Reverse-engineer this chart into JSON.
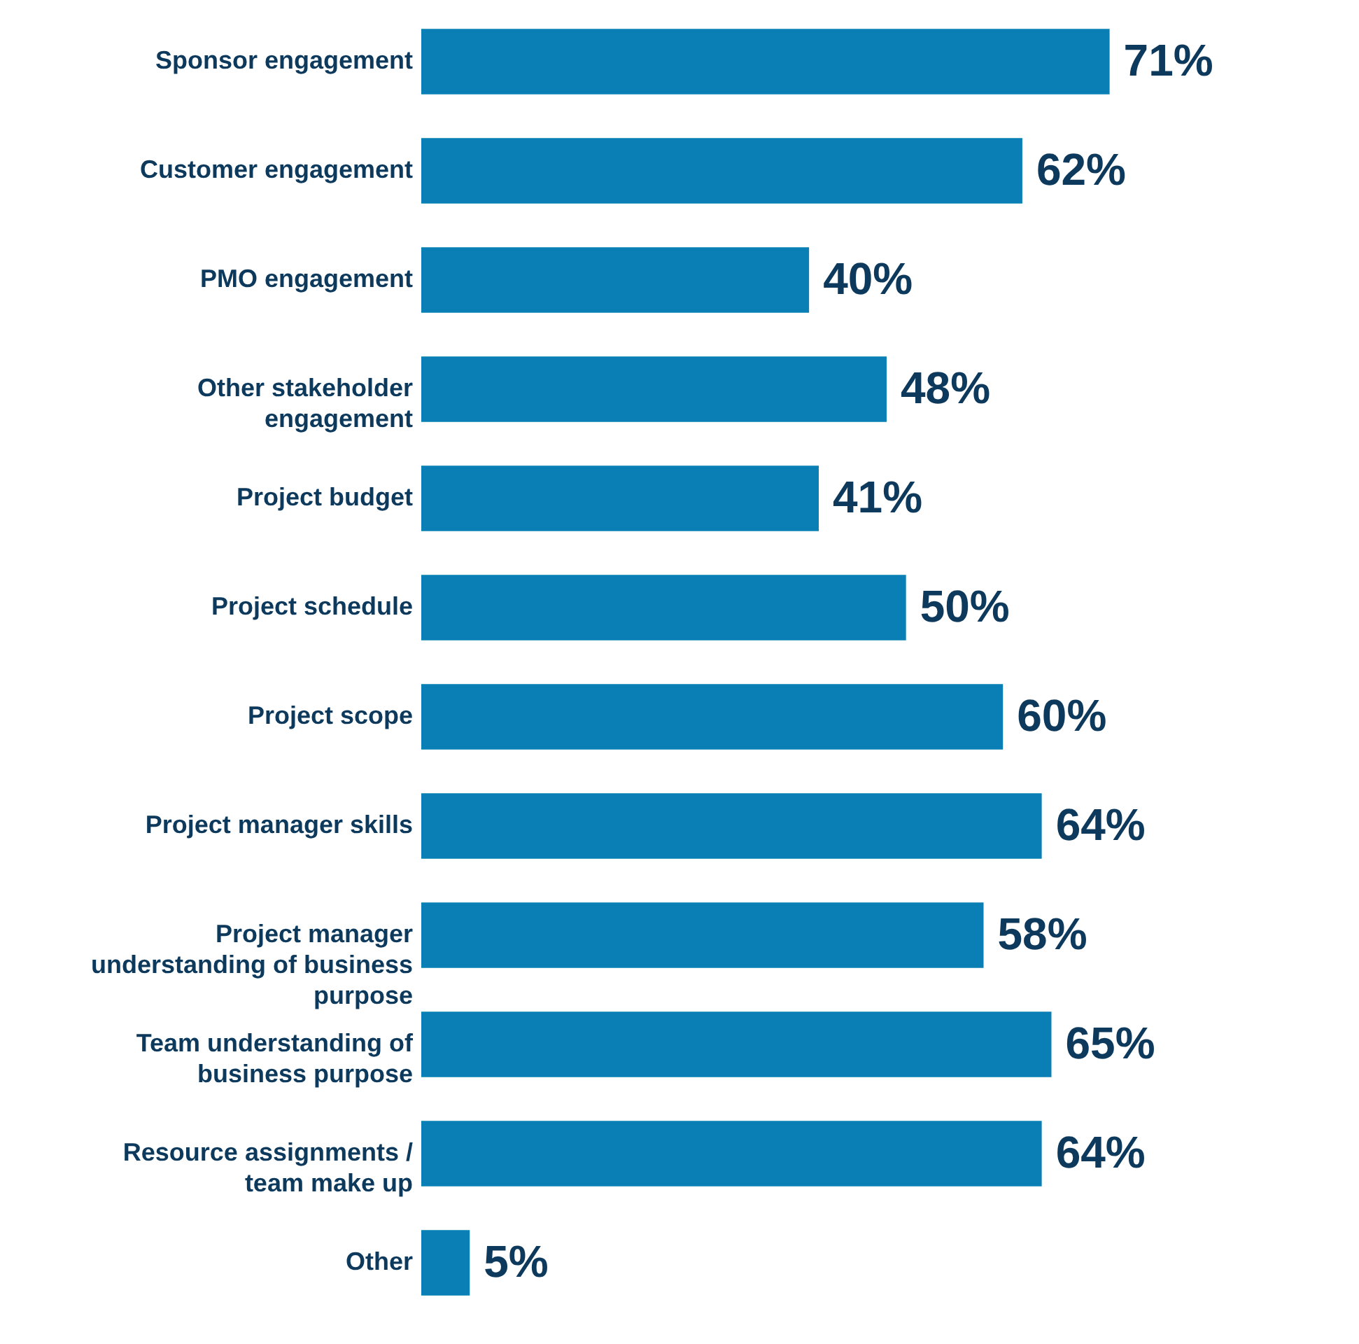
{
  "chart_data": {
    "type": "bar",
    "orientation": "horizontal",
    "color": "#0a7fb5",
    "value_labels": [
      "71%",
      "62%",
      "40%",
      "48%",
      "41%",
      "50%",
      "60%",
      "64%",
      "58%",
      "65%",
      "64%",
      "5%"
    ],
    "categories": [
      "Sponsor engagement",
      "Customer engagement",
      "PMO engagement",
      "Other stakeholder engagement",
      "Project budget",
      "Project schedule",
      "Project scope",
      "Project manager skills",
      "Project manager understanding of business purpose",
      "Team understanding of business purpose",
      "Resource assignments / team make up",
      "Other"
    ],
    "values": [
      71,
      62,
      40,
      48,
      41,
      50,
      60,
      64,
      58,
      65,
      64,
      5
    ]
  }
}
